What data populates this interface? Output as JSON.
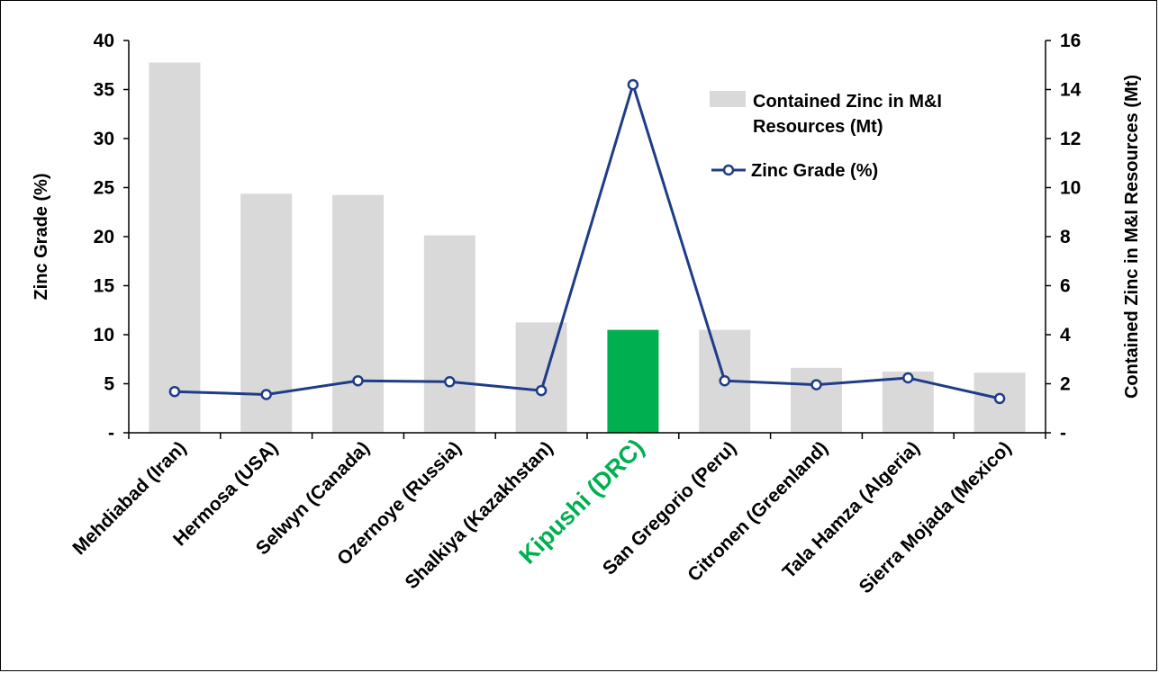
{
  "chart_data": {
    "type": "bar+line",
    "categories": [
      "Mehdiabad (Iran)",
      "Hermosa (USA)",
      "Selwyn (Canada)",
      "Ozernoye (Russia)",
      "Shalkiya (Kazakhstan)",
      "Kipushi (DRC)",
      "San Gregorio (Peru)",
      "Citronen (Greenland)",
      "Tala Hamza (Algeria)",
      "Sierra Mojada (Mexico)"
    ],
    "highlight_index": 5,
    "series": [
      {
        "name": "Contained Zinc in M&I Resources (Mt)",
        "kind": "bar",
        "axis": "right",
        "values": [
          15.1,
          9.75,
          9.7,
          8.05,
          4.5,
          4.2,
          4.2,
          2.65,
          2.5,
          2.45
        ]
      },
      {
        "name": "Zinc Grade (%)",
        "kind": "line",
        "axis": "left",
        "values": [
          4.2,
          3.9,
          5.3,
          5.2,
          4.3,
          35.5,
          5.3,
          4.9,
          5.6,
          3.5
        ]
      }
    ],
    "legend": {
      "bar_line1": "Contained Zinc in M&I",
      "bar_line2": "Resources  (Mt)",
      "line_label": "Zinc Grade  (%)",
      "position": "top-right"
    },
    "ylabel_left": "Zinc Grade (%)",
    "ylabel_right": "Contained Zinc in M&I Resources (Mt)",
    "y_left": {
      "range": [
        0,
        40
      ],
      "ticks": [
        "-",
        "5",
        "10",
        "15",
        "20",
        "25",
        "30",
        "35",
        "40"
      ]
    },
    "y_right": {
      "range": [
        0,
        16
      ],
      "ticks": [
        "-",
        "2",
        "4",
        "6",
        "8",
        "10",
        "12",
        "14",
        "16"
      ]
    },
    "colors": {
      "bar": "#d9d9d9",
      "bar_highlight": "#00b050",
      "line": "#1f3c88",
      "highlight_label": "#00b050"
    }
  }
}
